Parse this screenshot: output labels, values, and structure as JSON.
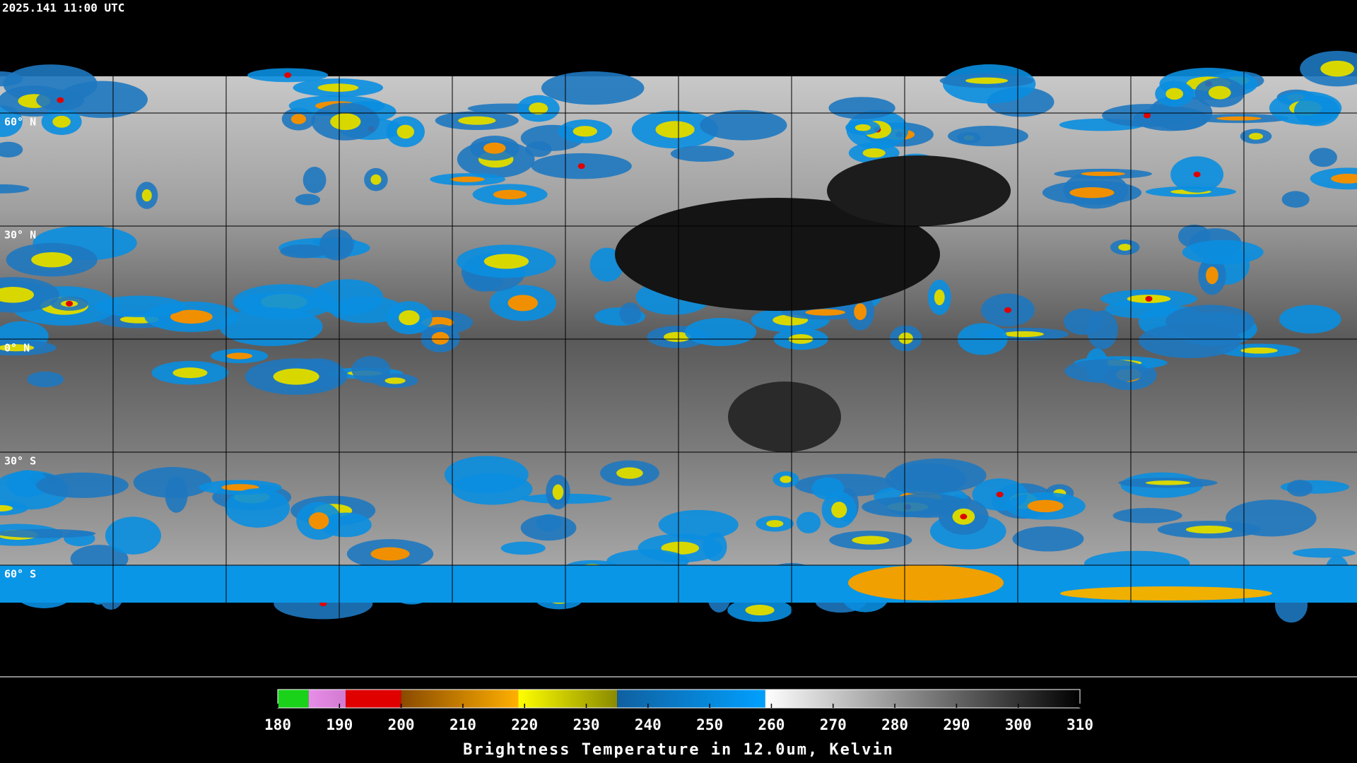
{
  "header": {
    "timestamp": "2025.141 11:00 UTC"
  },
  "map": {
    "lat_labels": [
      "60° N",
      "30° N",
      "0° N",
      "30° S",
      "60° S"
    ]
  },
  "colorbar": {
    "label": "Brightness Temperature in 12.0um, Kelvin",
    "lim": [
      180,
      310
    ],
    "ticks": [
      180,
      190,
      200,
      210,
      220,
      230,
      240,
      250,
      260,
      270,
      280,
      290,
      300,
      310
    ],
    "stops": [
      {
        "from": 180,
        "to": 185,
        "colors": [
          "#19d219",
          "#19d219"
        ]
      },
      {
        "from": 185,
        "to": 191,
        "colors": [
          "#e88de8",
          "#d27ad2"
        ]
      },
      {
        "from": 191,
        "to": 200,
        "colors": [
          "#e00000",
          "#e00000"
        ]
      },
      {
        "from": 200,
        "to": 219,
        "colors": [
          "#8a4a00",
          "#ffb000"
        ]
      },
      {
        "from": 219,
        "to": 235,
        "colors": [
          "#ffff00",
          "#8a8a00"
        ]
      },
      {
        "from": 235,
        "to": 259,
        "colors": [
          "#1060a0",
          "#00a0ff"
        ]
      },
      {
        "from": 259,
        "to": 310,
        "colors": [
          "#ffffff",
          "#000000"
        ]
      }
    ]
  }
}
